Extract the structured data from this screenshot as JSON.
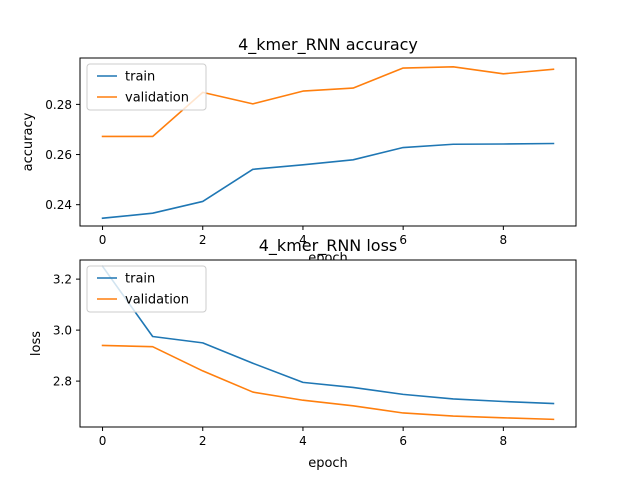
{
  "colors": {
    "train": "#1f77b4",
    "validation": "#ff7f0e"
  },
  "chart_data": [
    {
      "type": "line",
      "title": "4_kmer_RNN accuracy",
      "xlabel": "epoch",
      "ylabel": "accuracy",
      "x": [
        0,
        1,
        2,
        3,
        4,
        5,
        6,
        7,
        8,
        9
      ],
      "xlim": [
        -0.45,
        9.45
      ],
      "ylim": [
        0.2315,
        0.2985
      ],
      "xticks": [
        0,
        2,
        4,
        6,
        8
      ],
      "xtick_labels": [
        "0",
        "2",
        "4",
        "6",
        "8"
      ],
      "yticks": [
        0.24,
        0.26,
        0.28
      ],
      "ytick_labels": [
        "0.24",
        "0.26",
        "0.28"
      ],
      "legend": "upper left",
      "grid": false,
      "series": [
        {
          "name": "train",
          "color": "#1f77b4",
          "values": [
            0.2346,
            0.2366,
            0.2413,
            0.2541,
            0.2559,
            0.2579,
            0.2628,
            0.2641,
            0.2642,
            0.2644
          ]
        },
        {
          "name": "validation",
          "color": "#ff7f0e",
          "values": [
            0.2672,
            0.2672,
            0.2848,
            0.2802,
            0.2853,
            0.2865,
            0.2945,
            0.295,
            0.2922,
            0.294
          ]
        }
      ]
    },
    {
      "type": "line",
      "title": "4_kmer_RNN loss",
      "xlabel": "epoch",
      "ylabel": "loss",
      "x": [
        0,
        1,
        2,
        3,
        4,
        5,
        6,
        7,
        8,
        9
      ],
      "xlim": [
        -0.45,
        9.45
      ],
      "ylim": [
        2.62,
        3.275
      ],
      "xticks": [
        0,
        2,
        4,
        6,
        8
      ],
      "xtick_labels": [
        "0",
        "2",
        "4",
        "6",
        "8"
      ],
      "yticks": [
        2.8,
        3.0,
        3.2
      ],
      "ytick_labels": [
        "2.8",
        "3.0",
        "3.2"
      ],
      "legend": "upper left",
      "grid": false,
      "series": [
        {
          "name": "train",
          "color": "#1f77b4",
          "values": [
            3.25,
            2.975,
            2.95,
            2.87,
            2.795,
            2.775,
            2.748,
            2.73,
            2.72,
            2.712
          ]
        },
        {
          "name": "validation",
          "color": "#ff7f0e",
          "values": [
            2.94,
            2.935,
            2.84,
            2.757,
            2.725,
            2.703,
            2.675,
            2.663,
            2.656,
            2.65
          ]
        }
      ]
    }
  ]
}
